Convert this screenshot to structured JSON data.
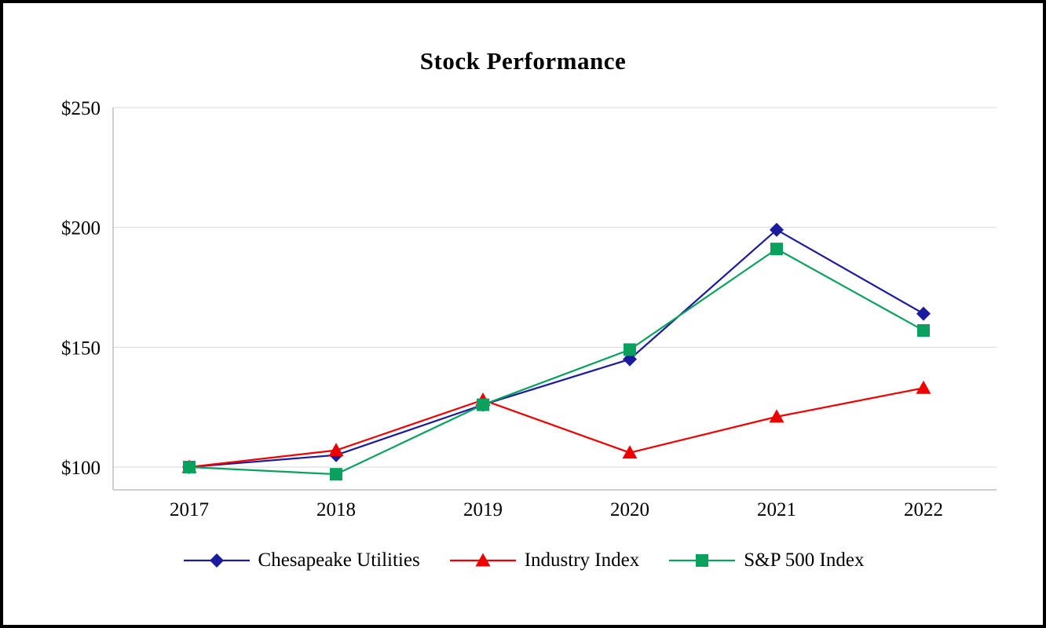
{
  "chart_data": {
    "type": "line",
    "title": "Stock Performance",
    "categories": [
      "2017",
      "2018",
      "2019",
      "2020",
      "2021",
      "2022"
    ],
    "series": [
      {
        "name": "Chesapeake Utilities",
        "marker": "diamond",
        "color": "#1b1b9e",
        "values": [
          100,
          105,
          126,
          145,
          199,
          164
        ]
      },
      {
        "name": "Industry Index",
        "marker": "triangle",
        "color": "#ee0000",
        "values": [
          100,
          107,
          128,
          106,
          121,
          133
        ]
      },
      {
        "name": "S&P 500 Index",
        "marker": "square",
        "color": "#0aa15e",
        "values": [
          100,
          97,
          126,
          149,
          191,
          157
        ]
      }
    ],
    "y_ticks": [
      100,
      150,
      200,
      250
    ],
    "y_tick_labels": [
      "$100",
      "$150",
      "$200",
      "$250"
    ],
    "ylim": [
      90,
      250
    ],
    "grid": "horizontal",
    "legend_position": "bottom",
    "style": {
      "grid_color": "#d9d9d9",
      "axis_color": "#bfbfbf",
      "text_color": "#000000",
      "background": "#ffffff",
      "frame_border": "#000000"
    }
  }
}
